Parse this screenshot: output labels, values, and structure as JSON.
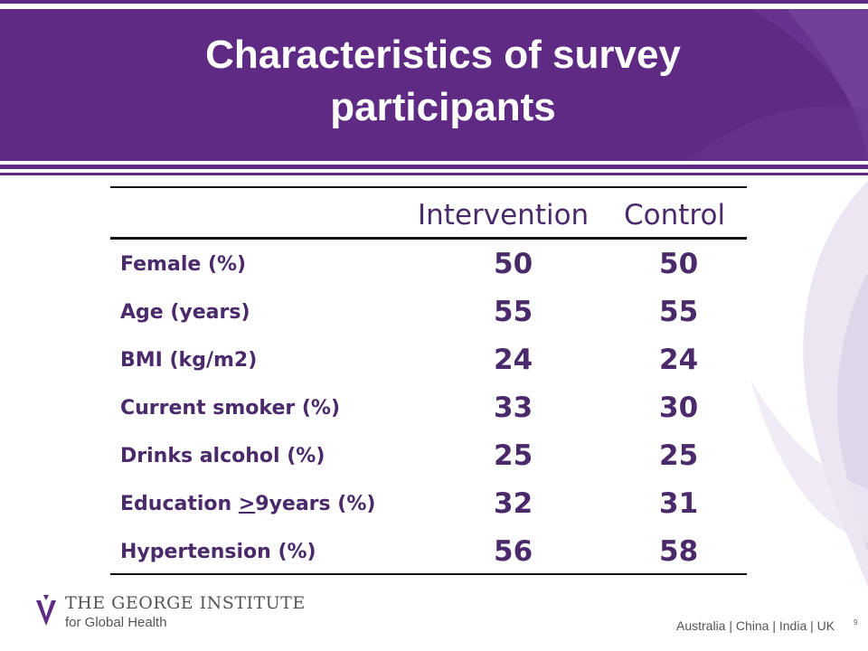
{
  "slide": {
    "title_line1": "Characteristics of survey",
    "title_line2": "participants",
    "accent_color": "#5e2a84"
  },
  "table": {
    "headers": {
      "intervention": "Intervention",
      "control": "Control"
    },
    "rows": [
      {
        "label": "Female (%)",
        "intervention": "50",
        "control": "50"
      },
      {
        "label": "Age (years)",
        "intervention": "55",
        "control": "55"
      },
      {
        "label": "BMI (kg/m2)",
        "intervention": "24",
        "control": "24"
      },
      {
        "label": "Current smoker (%)",
        "intervention": "33",
        "control": "30"
      },
      {
        "label": "Drinks alcohol (%)",
        "intervention": "25",
        "control": "25"
      },
      {
        "label_prefix": "Education ",
        "label_underlined": ">",
        "label_suffix": "9years (%)",
        "intervention": "32",
        "control": "31"
      },
      {
        "label": "Hypertension (%)",
        "intervention": "56",
        "control": "58"
      }
    ]
  },
  "footer": {
    "org_name": "THE GEORGE INSTITUTE",
    "org_subtitle": "for Global Health",
    "countries": "Australia | China | India | UK",
    "page_number": "9",
    "logo_icon": "george-institute-logo-icon"
  }
}
